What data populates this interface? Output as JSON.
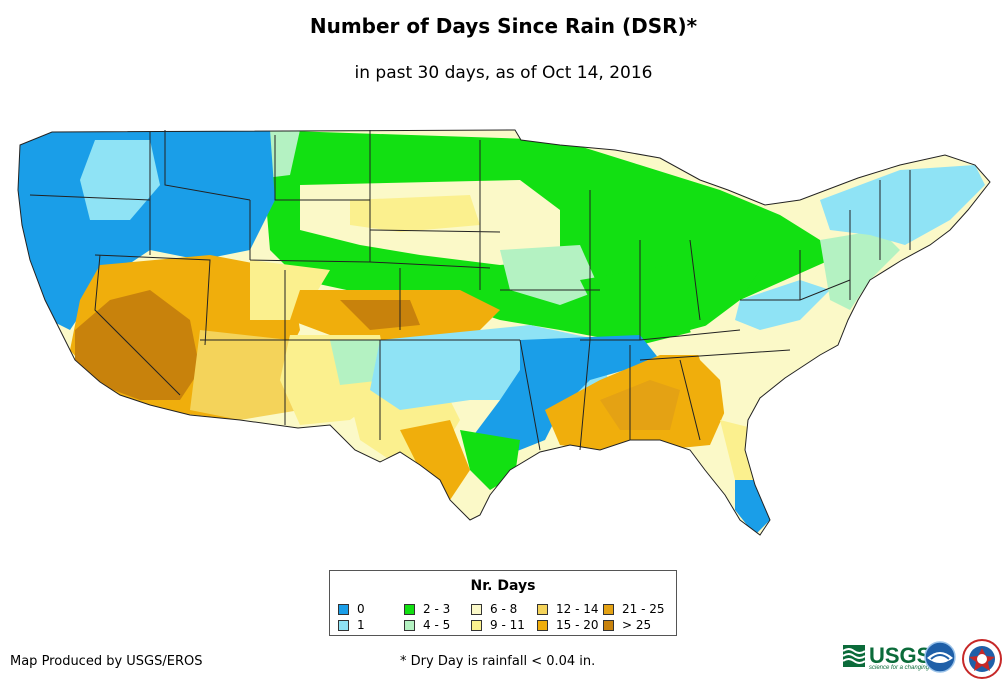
{
  "title": "Number of Days Since Rain (DSR)*",
  "subtitle": "in past 30 days, as of Oct 14, 2016",
  "legend": {
    "title": "Nr. Days",
    "items": [
      {
        "label": "0",
        "color": "#1a9ee8"
      },
      {
        "label": "1",
        "color": "#8fe3f5"
      },
      {
        "label": "2 - 3",
        "color": "#12e012"
      },
      {
        "label": "4 - 5",
        "color": "#b4f2c2"
      },
      {
        "label": "6 - 8",
        "color": "#fbf9c8"
      },
      {
        "label": "9 - 11",
        "color": "#fbf08e"
      },
      {
        "label": "12 - 14",
        "color": "#f4d35a"
      },
      {
        "label": "15 - 20",
        "color": "#f0ae0c"
      },
      {
        "label": "21 - 25",
        "color": "#e4a214"
      },
      {
        "label": "> 25",
        "color": "#c8820c"
      }
    ]
  },
  "credit": "Map Produced by USGS/EROS",
  "footnote": "* Dry Day is rainfall < 0.04 in.",
  "logos": {
    "usgs_text": "USGS",
    "usgs_tagline": "science for a changing world"
  },
  "map_regions": [
    {
      "name": "pacific-northwest",
      "category": "0"
    },
    {
      "name": "california-coast",
      "category": "0"
    },
    {
      "name": "idaho-montana-west",
      "category": "0"
    },
    {
      "name": "nevada-southern-california",
      "category": "> 25"
    },
    {
      "name": "great-basin",
      "category": "15 - 20"
    },
    {
      "name": "arizona-utah",
      "category": "12 - 14"
    },
    {
      "name": "northern-plains",
      "category": "2 - 3"
    },
    {
      "name": "upper-midwest",
      "category": "6 - 8"
    },
    {
      "name": "great-lakes",
      "category": "2 - 3"
    },
    {
      "name": "central-plains",
      "category": "2 - 3"
    },
    {
      "name": "colorado-kansas",
      "category": "15 - 20"
    },
    {
      "name": "oklahoma-arkansas",
      "category": "1"
    },
    {
      "name": "lower-mississippi",
      "category": "0"
    },
    {
      "name": "texas-gulf",
      "category": "0"
    },
    {
      "name": "texas-west",
      "category": "9 - 11"
    },
    {
      "name": "deep-south",
      "category": "15 - 20"
    },
    {
      "name": "southeast-atlantic",
      "category": "6 - 8"
    },
    {
      "name": "appalachia",
      "category": "1"
    },
    {
      "name": "mid-atlantic",
      "category": "4 - 5"
    },
    {
      "name": "new-england",
      "category": "1"
    },
    {
      "name": "south-florida",
      "category": "0"
    }
  ]
}
